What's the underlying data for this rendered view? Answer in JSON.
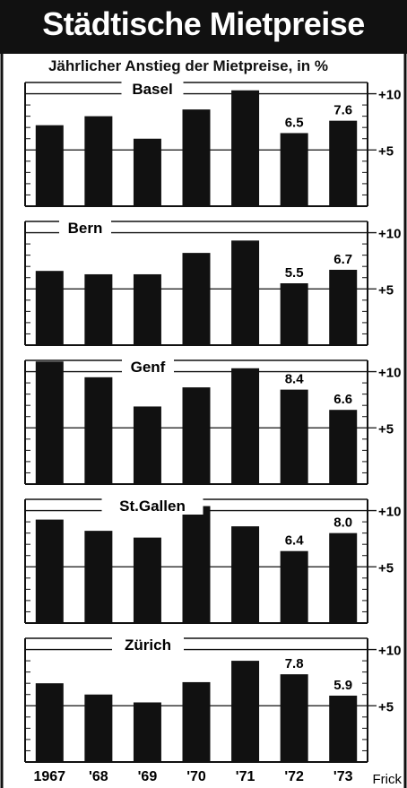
{
  "header": {
    "title": "Städtische Mietpreise",
    "subtitle": "Jährlicher Anstieg der Mietpreise, in %"
  },
  "credit": "Frick",
  "chart_data": [
    {
      "type": "bar",
      "title": "Basel",
      "categories": [
        "1967",
        "'68",
        "'69",
        "'70",
        "'71",
        "'72",
        "'73"
      ],
      "values": [
        7.2,
        8.0,
        6.0,
        8.6,
        10.3,
        6.5,
        7.6
      ],
      "data_labels": {
        "5": "6.5",
        "6": "7.6"
      },
      "ylim": [
        0,
        11
      ],
      "ytick_labels": {
        "5": "+5",
        "10": "+10"
      },
      "grid": true
    },
    {
      "type": "bar",
      "title": "Bern",
      "categories": [
        "1967",
        "'68",
        "'69",
        "'70",
        "'71",
        "'72",
        "'73"
      ],
      "values": [
        6.6,
        6.3,
        6.3,
        8.2,
        9.3,
        5.5,
        6.7
      ],
      "data_labels": {
        "5": "5.5",
        "6": "6.7"
      },
      "ylim": [
        0,
        11
      ],
      "ytick_labels": {
        "5": "+5",
        "10": "+10"
      },
      "grid": true
    },
    {
      "type": "bar",
      "title": "Genf",
      "categories": [
        "1967",
        "'68",
        "'69",
        "'70",
        "'71",
        "'72",
        "'73"
      ],
      "values": [
        10.9,
        9.5,
        6.9,
        8.6,
        10.3,
        8.4,
        6.6
      ],
      "data_labels": {
        "5": "8.4",
        "6": "6.6"
      },
      "ylim": [
        0,
        11
      ],
      "ytick_labels": {
        "5": "+5",
        "10": "+10"
      },
      "grid": true
    },
    {
      "type": "bar",
      "title": "St.Gallen",
      "categories": [
        "1967",
        "'68",
        "'69",
        "'70",
        "'71",
        "'72",
        "'73"
      ],
      "values": [
        9.2,
        8.2,
        7.6,
        10.4,
        8.6,
        6.4,
        8.0
      ],
      "data_labels": {
        "5": "6.4",
        "6": "8.0"
      },
      "ylim": [
        0,
        11
      ],
      "ytick_labels": {
        "5": "+5",
        "10": "+10"
      },
      "grid": true
    },
    {
      "type": "bar",
      "title": "Zürich",
      "categories": [
        "1967",
        "'68",
        "'69",
        "'70",
        "'71",
        "'72",
        "'73"
      ],
      "values": [
        7.0,
        6.0,
        5.3,
        7.1,
        9.0,
        7.8,
        5.9
      ],
      "data_labels": {
        "5": "7.8",
        "6": "5.9"
      },
      "ylim": [
        0,
        11
      ],
      "ytick_labels": {
        "5": "+5",
        "10": "+10"
      },
      "grid": true
    }
  ]
}
